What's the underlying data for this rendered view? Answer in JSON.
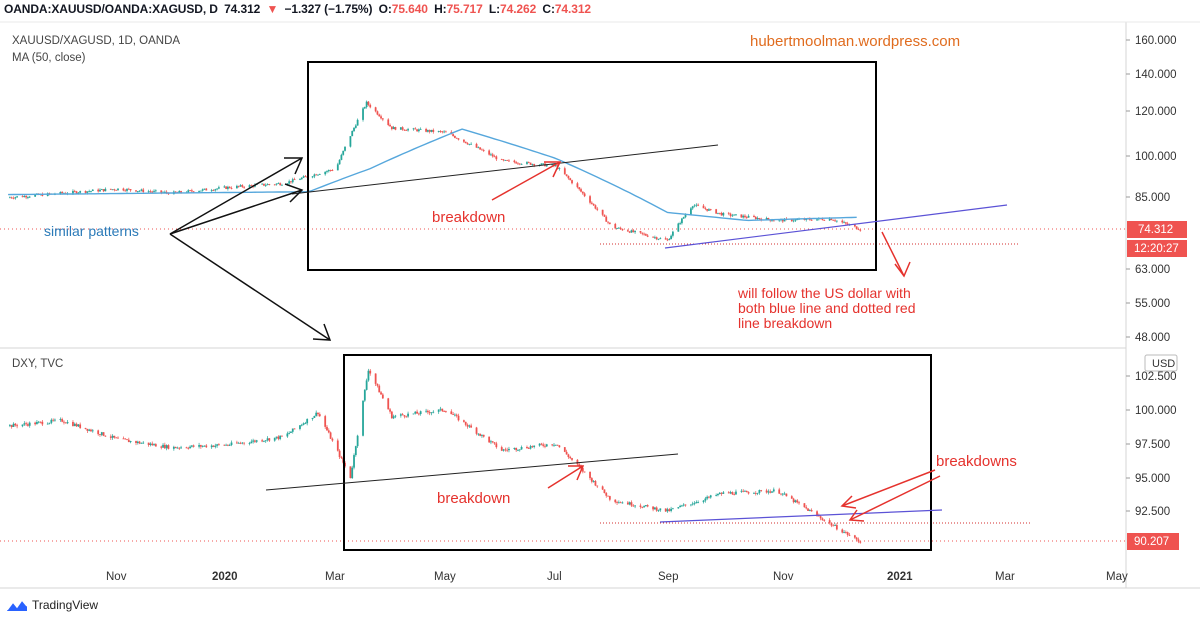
{
  "header": {
    "symbol": "OANDA:XAUUSD/OANDA:XAGUSD, D",
    "last": "74.312",
    "change": "−1.327 (−1.75%)",
    "o_label": "O:",
    "o_value": "75.640",
    "h_label": "H:",
    "h_value": "75.717",
    "l_label": "L:",
    "l_value": "74.262",
    "c_label": "C:",
    "c_value": "74.312"
  },
  "top_pane": {
    "title": "XAUUSD/XAGUSD, 1D, OANDA",
    "indicator": "MA (50, close)",
    "watermark": "hubertmoolman.wordpress.com",
    "price_tag": "74.312",
    "countdown_tag": "12:20:27",
    "y_ticks": [
      "160.000",
      "140.000",
      "120.000",
      "100.000",
      "85.000",
      "74.312",
      "63.000",
      "55.000",
      "48.000"
    ]
  },
  "bottom_pane": {
    "title": "DXY, TVC",
    "currency_badge": "USD",
    "price_tag": "90.207",
    "y_ticks": [
      "102.500",
      "100.000",
      "97.500",
      "95.000",
      "92.500",
      "90.207"
    ]
  },
  "x_axis_ticks": [
    "Nov",
    "2020",
    "Mar",
    "May",
    "Jul",
    "Sep",
    "Nov",
    "2021",
    "Mar",
    "May"
  ],
  "annotations": {
    "similar_patterns": "similar patterns",
    "breakdown_top": "breakdown",
    "breakdown_bottom": "breakdown",
    "breakdowns": "breakdowns",
    "follow_line1": "will follow the US dollar with",
    "follow_line2": "both blue line and dotted red",
    "follow_line3": "line breakdown"
  },
  "footer": {
    "brand": "TradingView"
  },
  "colors": {
    "up": "#26a69a",
    "down": "#ef5350",
    "ma": "#56a7dc",
    "annotation_red": "#e5322d",
    "annotation_blue": "#2a7ab8",
    "watermark": "#e06c1f",
    "trendline_blue": "#5b52d6",
    "box": "#000000"
  },
  "chart_data": [
    {
      "type": "candlestick",
      "title": "XAUUSD/XAGUSD, 1D, OANDA",
      "indicator": "MA (50, close)",
      "x_range": [
        "2019-09",
        "2021-05"
      ],
      "y_scale": "log",
      "y_range": [
        45,
        165
      ],
      "last": 74.312,
      "series_path": [
        {
          "date": "2019-09-01",
          "close": 84.5
        },
        {
          "date": "2019-10-01",
          "close": 86.0
        },
        {
          "date": "2019-11-01",
          "close": 87.5
        },
        {
          "date": "2019-12-01",
          "close": 86.0
        },
        {
          "date": "2020-01-01",
          "close": 88.0
        },
        {
          "date": "2020-02-01",
          "close": 89.5
        },
        {
          "date": "2020-03-01",
          "close": 95.0
        },
        {
          "date": "2020-03-18",
          "close": 124.0
        },
        {
          "date": "2020-04-01",
          "close": 112.0
        },
        {
          "date": "2020-05-01",
          "close": 110.0
        },
        {
          "date": "2020-06-01",
          "close": 98.0
        },
        {
          "date": "2020-07-01",
          "close": 96.0
        },
        {
          "date": "2020-08-01",
          "close": 75.0
        },
        {
          "date": "2020-09-01",
          "close": 71.0
        },
        {
          "date": "2020-09-15",
          "close": 82.0
        },
        {
          "date": "2020-10-01",
          "close": 79.0
        },
        {
          "date": "2020-11-01",
          "close": 77.0
        },
        {
          "date": "2020-12-01",
          "close": 77.5
        },
        {
          "date": "2020-12-17",
          "close": 74.312
        }
      ],
      "ma50": [
        {
          "date": "2019-09-01",
          "value": 85.5
        },
        {
          "date": "2020-02-15",
          "value": 86.5
        },
        {
          "date": "2020-03-20",
          "value": 95.0
        },
        {
          "date": "2020-05-10",
          "value": 111.5
        },
        {
          "date": "2020-07-01",
          "value": 99.0
        },
        {
          "date": "2020-09-01",
          "value": 79.5
        },
        {
          "date": "2020-10-15",
          "value": 77.0
        },
        {
          "date": "2020-12-17",
          "value": 78.0
        }
      ],
      "reference_line": 71.0
    },
    {
      "type": "candlestick",
      "title": "DXY, TVC",
      "x_range": [
        "2019-09",
        "2021-05"
      ],
      "y_range": [
        88.6,
        104.0
      ],
      "last": 90.207,
      "series_path": [
        {
          "date": "2019-09-01",
          "close": 98.8
        },
        {
          "date": "2019-10-01",
          "close": 99.2
        },
        {
          "date": "2019-11-01",
          "close": 97.8
        },
        {
          "date": "2019-12-01",
          "close": 97.2
        },
        {
          "date": "2020-01-01",
          "close": 97.4
        },
        {
          "date": "2020-02-01",
          "close": 98.0
        },
        {
          "date": "2020-02-20",
          "close": 99.8
        },
        {
          "date": "2020-03-09",
          "close": 95.0
        },
        {
          "date": "2020-03-19",
          "close": 103.0
        },
        {
          "date": "2020-04-01",
          "close": 99.5
        },
        {
          "date": "2020-05-01",
          "close": 100.0
        },
        {
          "date": "2020-06-01",
          "close": 97.0
        },
        {
          "date": "2020-07-01",
          "close": 97.5
        },
        {
          "date": "2020-08-01",
          "close": 93.3
        },
        {
          "date": "2020-09-01",
          "close": 92.5
        },
        {
          "date": "2020-10-01",
          "close": 93.8
        },
        {
          "date": "2020-11-01",
          "close": 94.0
        },
        {
          "date": "2020-12-01",
          "close": 91.5
        },
        {
          "date": "2020-12-17",
          "close": 90.207
        }
      ],
      "reference_line": 91.8
    }
  ]
}
